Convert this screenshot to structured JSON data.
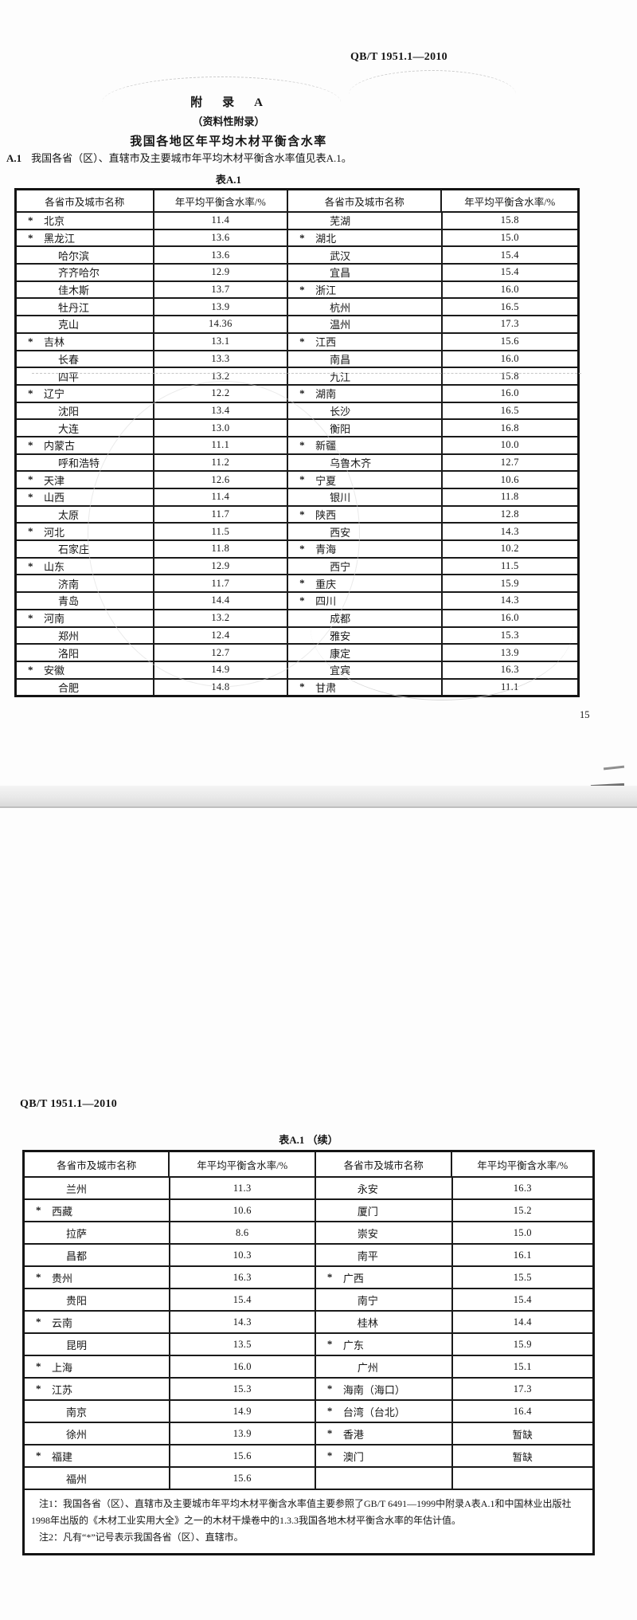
{
  "doc": {
    "standard_no": "QB/T 1951.1—2010",
    "page_number": "15"
  },
  "page1": {
    "appendix_label": "附　录　A",
    "appendix_type": "（资料性附录）",
    "appendix_title": "我国各地区年平均木材平衡含水率",
    "clause_no": "A.1",
    "clause_text": "我国各省（区）、直辖市及主要城市年平均木材平衡含水率值见表A.1。",
    "table_caption": "表A.1"
  },
  "page2": {
    "table_caption": "表A.1 （续）",
    "note1": "注1：我国各省（区）、直辖市及主要城市年平均木材平衡含水率值主要参照了GB/T 6491—1999中附录A表A.1和中国林业出版社1998年出版的《木材工业实用大全》之一的木材干燥卷中的1.3.3我国各地木材平衡含水率的年估计值。",
    "note2": "注2：凡有“*”记号表示我国各省（区）、直辖市。"
  },
  "table_columns": [
    "各省市及城市名称",
    "年平均平衡含水率/%",
    "各省市及城市名称",
    "年平均平衡含水率/%"
  ],
  "star_symbol": "*",
  "table1_rows": [
    [
      "*",
      "北京",
      "11.4",
      "",
      "芜湖",
      "15.8"
    ],
    [
      "*",
      "黑龙江",
      "13.6",
      "*",
      "湖北",
      "15.0"
    ],
    [
      "",
      "哈尔滨",
      "13.6",
      "",
      "武汉",
      "15.4"
    ],
    [
      "",
      "齐齐哈尔",
      "12.9",
      "",
      "宜昌",
      "15.4"
    ],
    [
      "",
      "佳木斯",
      "13.7",
      "*",
      "浙江",
      "16.0"
    ],
    [
      "",
      "牡丹江",
      "13.9",
      "",
      "杭州",
      "16.5"
    ],
    [
      "",
      "克山",
      "14.36",
      "",
      "温州",
      "17.3"
    ],
    [
      "*",
      "吉林",
      "13.1",
      "*",
      "江西",
      "15.6"
    ],
    [
      "",
      "长春",
      "13.3",
      "",
      "南昌",
      "16.0"
    ],
    [
      "",
      "四平",
      "13.2",
      "",
      "九江",
      "15.8"
    ],
    [
      "*",
      "辽宁",
      "12.2",
      "*",
      "湖南",
      "16.0"
    ],
    [
      "",
      "沈阳",
      "13.4",
      "",
      "长沙",
      "16.5"
    ],
    [
      "",
      "大连",
      "13.0",
      "",
      "衡阳",
      "16.8"
    ],
    [
      "*",
      "内蒙古",
      "11.1",
      "*",
      "新疆",
      "10.0"
    ],
    [
      "",
      "呼和浩特",
      "11.2",
      "",
      "乌鲁木齐",
      "12.7"
    ],
    [
      "*",
      "天津",
      "12.6",
      "*",
      "宁夏",
      "10.6"
    ],
    [
      "*",
      "山西",
      "11.4",
      "",
      "银川",
      "11.8"
    ],
    [
      "",
      "太原",
      "11.7",
      "*",
      "陕西",
      "12.8"
    ],
    [
      "*",
      "河北",
      "11.5",
      "",
      "西安",
      "14.3"
    ],
    [
      "",
      "石家庄",
      "11.8",
      "*",
      "青海",
      "10.2"
    ],
    [
      "*",
      "山东",
      "12.9",
      "",
      "西宁",
      "11.5"
    ],
    [
      "",
      "济南",
      "11.7",
      "*",
      "重庆",
      "15.9"
    ],
    [
      "",
      "青岛",
      "14.4",
      "*",
      "四川",
      "14.3"
    ],
    [
      "*",
      "河南",
      "13.2",
      "",
      "成都",
      "16.0"
    ],
    [
      "",
      "郑州",
      "12.4",
      "",
      "雅安",
      "15.3"
    ],
    [
      "",
      "洛阳",
      "12.7",
      "",
      "康定",
      "13.9"
    ],
    [
      "*",
      "安徽",
      "14.9",
      "",
      "宜宾",
      "16.3"
    ],
    [
      "",
      "合肥",
      "14.8",
      "*",
      "甘肃",
      "11.1"
    ]
  ],
  "table2_rows": [
    [
      "",
      "兰州",
      "11.3",
      "",
      "永安",
      "16.3"
    ],
    [
      "*",
      "西藏",
      "10.6",
      "",
      "厦门",
      "15.2"
    ],
    [
      "",
      "拉萨",
      "8.6",
      "",
      "崇安",
      "15.0"
    ],
    [
      "",
      "昌都",
      "10.3",
      "",
      "南平",
      "16.1"
    ],
    [
      "*",
      "贵州",
      "16.3",
      "*",
      "广西",
      "15.5"
    ],
    [
      "",
      "贵阳",
      "15.4",
      "",
      "南宁",
      "15.4"
    ],
    [
      "*",
      "云南",
      "14.3",
      "",
      "桂林",
      "14.4"
    ],
    [
      "",
      "昆明",
      "13.5",
      "*",
      "广东",
      "15.9"
    ],
    [
      "*",
      "上海",
      "16.0",
      "",
      "广州",
      "15.1"
    ],
    [
      "*",
      "江苏",
      "15.3",
      "*",
      "海南（海口）",
      "17.3"
    ],
    [
      "",
      "南京",
      "14.9",
      "*",
      "台湾（台北）",
      "16.4"
    ],
    [
      "",
      "徐州",
      "13.9",
      "*",
      "香港",
      "暂缺"
    ],
    [
      "*",
      "福建",
      "15.6",
      "*",
      "澳门",
      "暂缺"
    ],
    [
      "",
      "福州",
      "15.6",
      "",
      "",
      ""
    ]
  ]
}
